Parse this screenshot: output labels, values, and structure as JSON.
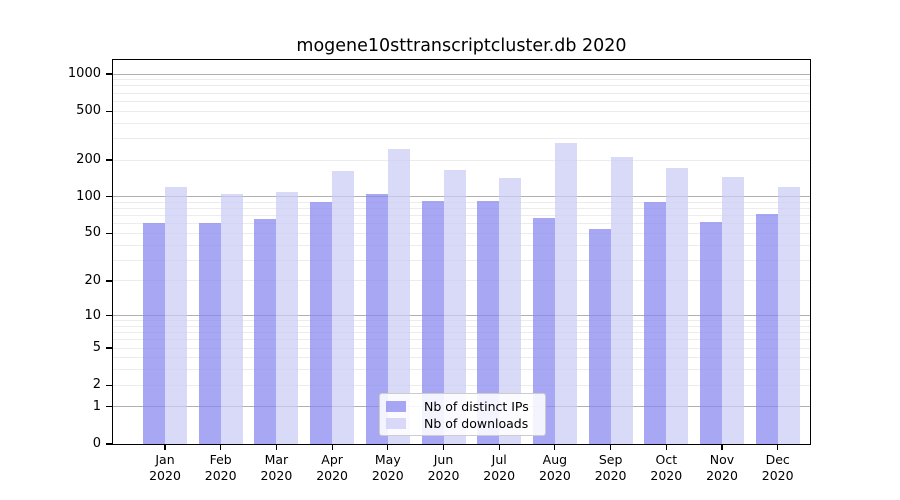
{
  "figure": {
    "background": "#ffffff",
    "text_color": "#000000"
  },
  "chart_data": {
    "type": "bar",
    "title": "mogene10sttranscriptcluster.db 2020",
    "categories": [
      "Jan 2020",
      "Feb 2020",
      "Mar 2020",
      "Apr 2020",
      "May 2020",
      "Jun 2020",
      "Jul 2020",
      "Aug 2020",
      "Sep 2020",
      "Oct 2020",
      "Nov 2020",
      "Dec 2020"
    ],
    "series": [
      {
        "name": "Nb of distinct IPs",
        "color_hex": "#a7a7f4",
        "fill": "rgba(133,133,240,0.72)",
        "values": [
          61,
          61,
          66,
          90,
          105,
          93,
          92,
          67,
          54,
          91,
          62,
          73
        ]
      },
      {
        "name": "Nb of downloads",
        "color_hex": "#d9d9f8",
        "fill": "rgba(202,202,245,0.72)",
        "values": [
          121,
          105,
          110,
          163,
          246,
          166,
          144,
          274,
          210,
          172,
          146,
          121
        ]
      }
    ],
    "xlabel": "",
    "ylabel": "",
    "y_scale": "log10(1+y)",
    "y_ticks": [
      0,
      1,
      2,
      5,
      10,
      20,
      50,
      100,
      200,
      500,
      1000
    ],
    "y_major_gridlines": [
      1,
      10,
      100,
      1000
    ],
    "ylim": [
      0,
      1270
    ],
    "grid": {
      "orientation": "horizontal",
      "major_color": "#b0b0b0",
      "minor_color": "#ececec"
    },
    "legend_position": "lower center"
  }
}
